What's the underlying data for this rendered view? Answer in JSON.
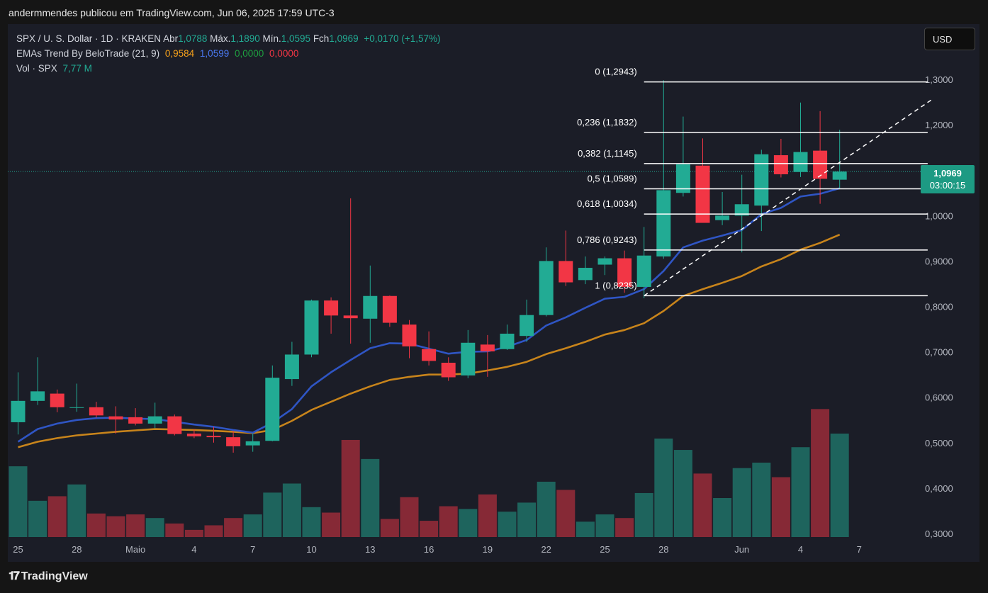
{
  "header": {
    "title": "andermmendes publicou em TradingView.com, Jun 06, 2025 17:59 UTC-3"
  },
  "legend": {
    "symbol": "SPX / U. S. Dollar · 1D · KRAKEN",
    "open_label": "Abr",
    "open": "1,0788",
    "high_label": "Máx.",
    "high": "1,1890",
    "low_label": "Mín.",
    "low": "1,0595",
    "close_label": "Fch",
    "close": "1,0969",
    "change": "+0,0170 (+1,57%)",
    "ema_name": "EMAs Trend By BeloTrade (21, 9)",
    "ema_vals": [
      "0,9584",
      "1,0599",
      "0,0000",
      "0,0000"
    ],
    "vol_label": "Vol · SPX",
    "vol": "7,77 M"
  },
  "currency_button": "USD",
  "price_tag": {
    "price": "1,0969",
    "countdown": "03:00:15"
  },
  "footer": {
    "logo": "𝟏𝟕",
    "brand": "TradingView"
  },
  "colors": {
    "up": "#22ab94",
    "down": "#f23645",
    "ema_fast": "#2f55c4",
    "ema_slow": "#c8841b",
    "background": "#1b1d27"
  },
  "chart_data": {
    "type": "candlestick",
    "y_ticks": [
      "1,3000",
      "1,2000",
      "1,1000",
      "1,0000",
      "0,9000",
      "0,8000",
      "0,7000",
      "0,6000",
      "0,5000",
      "0,4000",
      "0,3000"
    ],
    "y_tick_values": [
      1.3,
      1.2,
      1.1,
      1.0,
      0.9,
      0.8,
      0.7,
      0.6,
      0.5,
      0.4,
      0.3
    ],
    "ylim": [
      0.29,
      1.33
    ],
    "x_labels": [
      {
        "label": "25",
        "i": 0
      },
      {
        "label": "28",
        "i": 3
      },
      {
        "label": "Maio",
        "i": 6
      },
      {
        "label": "4",
        "i": 9
      },
      {
        "label": "7",
        "i": 12
      },
      {
        "label": "10",
        "i": 15
      },
      {
        "label": "13",
        "i": 18
      },
      {
        "label": "16",
        "i": 21
      },
      {
        "label": "19",
        "i": 24
      },
      {
        "label": "22",
        "i": 27
      },
      {
        "label": "25",
        "i": 30
      },
      {
        "label": "28",
        "i": 33
      },
      {
        "label": "Jun",
        "i": 37
      },
      {
        "label": "4",
        "i": 40
      },
      {
        "label": "7",
        "i": 43
      }
    ],
    "candles": [
      {
        "o": 0.545,
        "h": 0.655,
        "l": 0.518,
        "c": 0.592
      },
      {
        "o": 0.592,
        "h": 0.688,
        "l": 0.583,
        "c": 0.613
      },
      {
        "o": 0.608,
        "h": 0.617,
        "l": 0.567,
        "c": 0.578
      },
      {
        "o": 0.578,
        "h": 0.63,
        "l": 0.568,
        "c": 0.578
      },
      {
        "o": 0.578,
        "h": 0.59,
        "l": 0.555,
        "c": 0.56
      },
      {
        "o": 0.558,
        "h": 0.58,
        "l": 0.52,
        "c": 0.551
      },
      {
        "o": 0.556,
        "h": 0.576,
        "l": 0.538,
        "c": 0.542
      },
      {
        "o": 0.542,
        "h": 0.588,
        "l": 0.532,
        "c": 0.558
      },
      {
        "o": 0.558,
        "h": 0.562,
        "l": 0.516,
        "c": 0.519
      },
      {
        "o": 0.52,
        "h": 0.53,
        "l": 0.51,
        "c": 0.514
      },
      {
        "o": 0.515,
        "h": 0.535,
        "l": 0.5,
        "c": 0.512
      },
      {
        "o": 0.512,
        "h": 0.526,
        "l": 0.478,
        "c": 0.492
      },
      {
        "o": 0.494,
        "h": 0.52,
        "l": 0.48,
        "c": 0.503
      },
      {
        "o": 0.504,
        "h": 0.67,
        "l": 0.503,
        "c": 0.643
      },
      {
        "o": 0.64,
        "h": 0.722,
        "l": 0.625,
        "c": 0.694
      },
      {
        "o": 0.694,
        "h": 0.815,
        "l": 0.688,
        "c": 0.813
      },
      {
        "o": 0.813,
        "h": 0.82,
        "l": 0.74,
        "c": 0.78
      },
      {
        "o": 0.78,
        "h": 1.038,
        "l": 0.718,
        "c": 0.774
      },
      {
        "o": 0.773,
        "h": 0.89,
        "l": 0.72,
        "c": 0.823
      },
      {
        "o": 0.823,
        "h": 0.824,
        "l": 0.755,
        "c": 0.764
      },
      {
        "o": 0.76,
        "h": 0.77,
        "l": 0.686,
        "c": 0.712
      },
      {
        "o": 0.706,
        "h": 0.745,
        "l": 0.67,
        "c": 0.68
      },
      {
        "o": 0.676,
        "h": 0.688,
        "l": 0.636,
        "c": 0.644
      },
      {
        "o": 0.648,
        "h": 0.748,
        "l": 0.642,
        "c": 0.72
      },
      {
        "o": 0.716,
        "h": 0.737,
        "l": 0.645,
        "c": 0.701
      },
      {
        "o": 0.706,
        "h": 0.76,
        "l": 0.704,
        "c": 0.74
      },
      {
        "o": 0.735,
        "h": 0.815,
        "l": 0.722,
        "c": 0.781
      },
      {
        "o": 0.781,
        "h": 0.93,
        "l": 0.778,
        "c": 0.9
      },
      {
        "o": 0.9,
        "h": 0.967,
        "l": 0.845,
        "c": 0.853
      },
      {
        "o": 0.858,
        "h": 0.91,
        "l": 0.849,
        "c": 0.885
      },
      {
        "o": 0.892,
        "h": 0.91,
        "l": 0.869,
        "c": 0.906
      },
      {
        "o": 0.906,
        "h": 0.923,
        "l": 0.83,
        "c": 0.843
      },
      {
        "o": 0.843,
        "h": 0.975,
        "l": 0.818,
        "c": 0.912
      },
      {
        "o": 0.91,
        "h": 1.298,
        "l": 0.905,
        "c": 1.056
      },
      {
        "o": 1.05,
        "h": 1.218,
        "l": 1.042,
        "c": 1.113
      },
      {
        "o": 1.11,
        "h": 1.17,
        "l": 0.985,
        "c": 0.984
      },
      {
        "o": 0.99,
        "h": 1.052,
        "l": 0.979,
        "c": 1.0
      },
      {
        "o": 1.0,
        "h": 1.09,
        "l": 0.919,
        "c": 1.025
      },
      {
        "o": 1.022,
        "h": 1.145,
        "l": 0.966,
        "c": 1.135
      },
      {
        "o": 1.133,
        "h": 1.169,
        "l": 1.084,
        "c": 1.091
      },
      {
        "o": 1.096,
        "h": 1.249,
        "l": 1.085,
        "c": 1.14
      },
      {
        "o": 1.143,
        "h": 1.23,
        "l": 1.026,
        "c": 1.081
      },
      {
        "o": 1.079,
        "h": 1.189,
        "l": 1.06,
        "c": 1.097
      }
    ],
    "volume": [
      0.448,
      0.372,
      0.382,
      0.408,
      0.344,
      0.338,
      0.342,
      0.334,
      0.322,
      0.308,
      0.318,
      0.334,
      0.342,
      0.39,
      0.41,
      0.358,
      0.346,
      0.506,
      0.464,
      0.332,
      0.38,
      0.328,
      0.36,
      0.354,
      0.386,
      0.348,
      0.368,
      0.414,
      0.396,
      0.326,
      0.342,
      0.334,
      0.389,
      0.509,
      0.484,
      0.432,
      0.378,
      0.444,
      0.456,
      0.424,
      0.49,
      0.574,
      0.52
    ],
    "ema_fast": [
      0.502,
      0.53,
      0.542,
      0.55,
      0.554,
      0.555,
      0.553,
      0.552,
      0.546,
      0.54,
      0.535,
      0.528,
      0.522,
      0.544,
      0.574,
      0.624,
      0.655,
      0.682,
      0.708,
      0.719,
      0.718,
      0.707,
      0.696,
      0.7,
      0.701,
      0.711,
      0.726,
      0.758,
      0.776,
      0.797,
      0.817,
      0.821,
      0.838,
      0.878,
      0.93,
      0.945,
      0.956,
      0.968,
      1.003,
      1.017,
      1.042,
      1.048,
      1.06
    ],
    "ema_slow": [
      0.49,
      0.502,
      0.51,
      0.516,
      0.52,
      0.524,
      0.527,
      0.53,
      0.529,
      0.528,
      0.526,
      0.524,
      0.521,
      0.528,
      0.548,
      0.572,
      0.59,
      0.608,
      0.624,
      0.638,
      0.645,
      0.65,
      0.65,
      0.652,
      0.659,
      0.667,
      0.678,
      0.695,
      0.708,
      0.722,
      0.738,
      0.748,
      0.763,
      0.79,
      0.823,
      0.838,
      0.852,
      0.867,
      0.888,
      0.904,
      0.925,
      0.94,
      0.958
    ],
    "fib_levels": [
      {
        "label": "0 (1,2943)",
        "value": 1.2943
      },
      {
        "label": "0,236 (1,1832)",
        "value": 1.1832
      },
      {
        "label": "0,382 (1,1145)",
        "value": 1.1145
      },
      {
        "label": "0,5 (1,0589)",
        "value": 1.0589
      },
      {
        "label": "0,618 (1,0034)",
        "value": 1.0034
      },
      {
        "label": "0,786 (0,9243)",
        "value": 0.9243
      },
      {
        "label": "1 (0,8235)",
        "value": 0.8235
      }
    ],
    "fib_span_indices": [
      32,
      46.5
    ],
    "trendline": {
      "i0": 32,
      "v0": 0.8235,
      "i1": 46.7,
      "v1": 1.255
    },
    "last_price": 1.0969
  }
}
